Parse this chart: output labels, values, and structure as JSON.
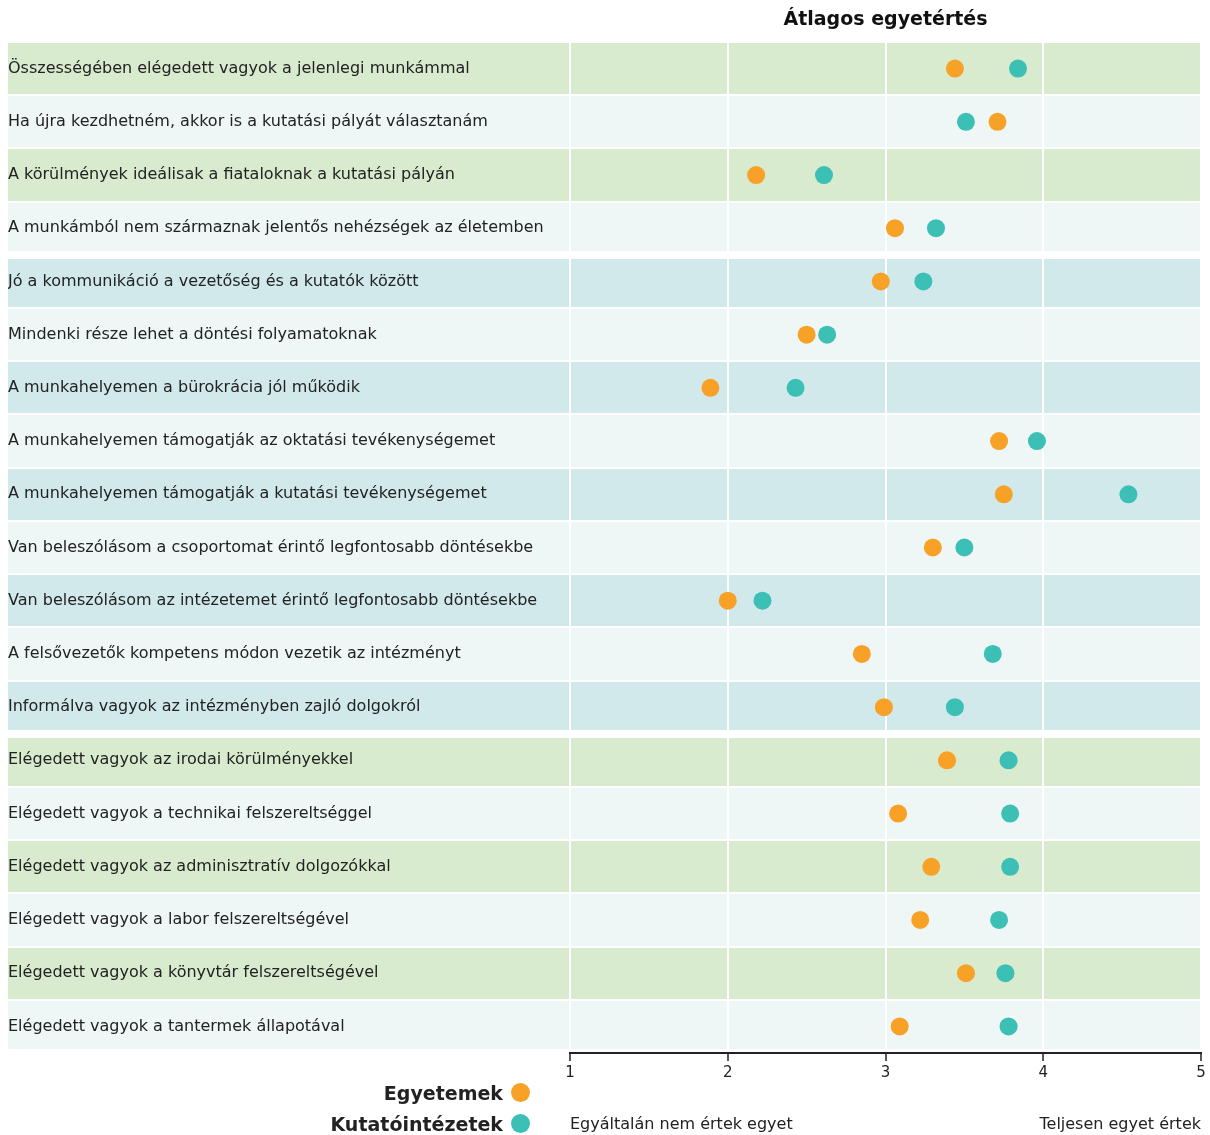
{
  "chart_data": {
    "type": "scatter",
    "title": "Átlagos egyetértés",
    "categories": [
      "Összességében elégedett vagyok a jelenlegi munkámmal",
      "Ha újra kezdhetném, akkor is a kutatási pályát választanám",
      "A körülmények ideálisak a fiataloknak a kutatási pályán",
      "A munkámból nem származnak jelentős nehézségek az életemben",
      "Jó a kommunikáció a vezetőség és a kutatók között",
      "Mindenki része lehet a döntési folyamatoknak",
      "A munkahelyemen a bürokrácia jól működik",
      "A munkahelyemen támogatják az oktatási tevékenységemet",
      "A munkahelyemen támogatják a kutatási tevékenységemet",
      "Van beleszólásom a csoportomat érintő legfontosabb döntésekbe",
      "Van beleszólásom az intézetemet érintő legfontosabb döntésekbe",
      "A felsővezetők kompetens módon vezetik az intézményt",
      "Informálva vagyok az intézményben zajló dolgokról",
      "Elégedett vagyok az irodai körülményekkel",
      "Elégedett vagyok a technikai felszereltséggel",
      "Elégedett vagyok az adminisztratív dolgozókkal",
      "Elégedett vagyok a labor felszereltségével",
      "Elégedett vagyok a könyvtár felszereltségével",
      "Elégedett vagyok a tantermek állapotával"
    ],
    "series": [
      {
        "name": "Egyetemek",
        "color": "#f7a127",
        "values": [
          3.44,
          3.71,
          2.18,
          3.06,
          2.97,
          2.5,
          1.89,
          3.72,
          3.75,
          3.3,
          2.0,
          2.85,
          2.99,
          3.39,
          3.08,
          3.29,
          3.22,
          3.51,
          3.09
        ]
      },
      {
        "name": "Kutatóintézetek",
        "color": "#3cbfb4",
        "values": [
          3.84,
          3.51,
          2.61,
          3.32,
          3.24,
          2.63,
          2.43,
          3.96,
          4.54,
          3.5,
          2.22,
          3.68,
          3.44,
          3.78,
          3.79,
          3.79,
          3.72,
          3.76,
          3.78
        ]
      }
    ],
    "orientation": "horizontal",
    "xlim": [
      1,
      5
    ],
    "xticks": [
      1,
      2,
      3,
      4,
      5
    ],
    "grid": "x",
    "marker": "circle",
    "legend": "bottom left",
    "annotations": [
      "Egyáltalán nem értek egyet",
      "Teljesen egyet értek"
    ]
  }
}
